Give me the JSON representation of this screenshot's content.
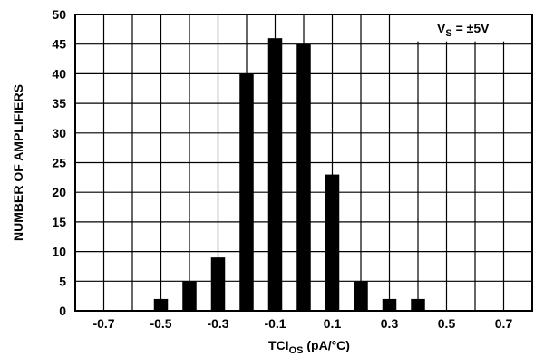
{
  "chart_data": {
    "type": "bar",
    "title": "",
    "xlabel": {
      "main": "TCI",
      "sub": "OS",
      "unit": " (pA/°C)"
    },
    "ylabel": "NUMBER OF AMPLIFIERS",
    "xlim": [
      -0.8,
      0.8
    ],
    "ylim": [
      0,
      50
    ],
    "xticks": [
      "-0.7",
      "-0.5",
      "-0.3",
      "-0.1",
      "0.1",
      "0.3",
      "0.5",
      "0.7"
    ],
    "yticks": [
      "0",
      "5",
      "10",
      "15",
      "20",
      "25",
      "30",
      "35",
      "40",
      "45",
      "50"
    ],
    "grid": true,
    "x": [
      -0.5,
      -0.4,
      -0.3,
      -0.2,
      -0.1,
      0.0,
      0.1,
      0.2,
      0.3,
      0.4
    ],
    "values": [
      2,
      5,
      9,
      40,
      46,
      45,
      23,
      5,
      2,
      2
    ],
    "annotation": {
      "main": "V",
      "sub": "S",
      "rest": " = ±5V"
    },
    "bar_color": "#000000"
  }
}
